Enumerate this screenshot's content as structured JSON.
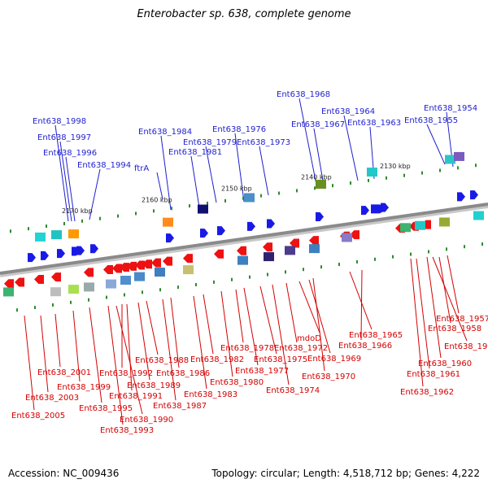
{
  "header": {
    "title": "Enterobacter sp. 638, complete genome"
  },
  "footer": {
    "accession": "Accession: NC_009436",
    "topology": "Topology: circular; Length: 4,518,712 bp; Genes: 4,222"
  },
  "colors": {
    "strand_plus": "#1a1ae6",
    "strand_minus": "#ee1111",
    "label_plus": "#1f1fcf",
    "label_minus": "#d40000",
    "backbone": "#8a8a8a",
    "tick": "#2e8b2e"
  },
  "scale_marks": [
    "2170 kbp",
    "2160 kbp",
    "2150 kbp",
    "2140 kbp",
    "2130 kbp"
  ],
  "plus_labels": [
    "Ent638_1998",
    "Ent638_1997",
    "Ent638_1996",
    "Ent638_1994",
    "Ent638_1984",
    "ftrA",
    "Ent638_1981",
    "Ent638_1979",
    "Ent638_1976",
    "Ent638_1973",
    "Ent638_1968",
    "Ent638_1967",
    "Ent638_1964",
    "Ent638_1963",
    "Ent638_1954",
    "Ent638_1955"
  ],
  "minus_labels": [
    "Ent638_2005",
    "Ent638_2003",
    "Ent638_2001",
    "Ent638_1999",
    "Ent638_1995",
    "Ent638_1993",
    "Ent638_1990",
    "Ent638_1992",
    "Ent638_1991",
    "Ent638_1989",
    "Ent638_1988",
    "Ent638_1987",
    "Ent638_1986",
    "Ent638_1983",
    "Ent638_1982",
    "Ent638_1980",
    "Ent638_1978",
    "Ent638_1977",
    "Ent638_1975",
    "Ent638_1974",
    "Ent638_1972",
    "mdoD",
    "Ent638_1969",
    "Ent638_1970",
    "Ent638_1965",
    "Ent638_1966",
    "Ent638_1962",
    "Ent638_1961",
    "Ent638_1960",
    "Ent638_1959",
    "Ent638_1958",
    "Ent638_1957"
  ]
}
